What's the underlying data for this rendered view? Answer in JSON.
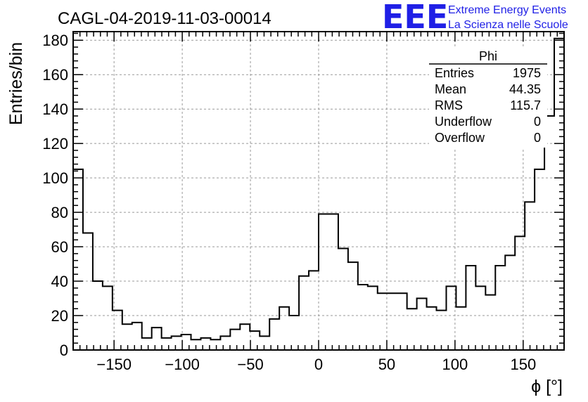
{
  "chart_data": {
    "type": "bar",
    "title": "CAGL-04-2019-11-03-00014",
    "xlabel": "ϕ [°]",
    "ylabel": "Entries/bin",
    "xlim": [
      -180,
      180
    ],
    "ylim": [
      0,
      185
    ],
    "grid": true,
    "x_ticks": [
      -150,
      -100,
      -50,
      0,
      50,
      100,
      150
    ],
    "y_ticks": [
      0,
      20,
      40,
      60,
      80,
      100,
      120,
      140,
      160,
      180
    ],
    "bin_width": 7.2,
    "bins_x_low": [
      -180,
      -172.8,
      -165.6,
      -158.4,
      -151.2,
      -144,
      -136.8,
      -129.6,
      -122.4,
      -115.2,
      -108,
      -100.8,
      -93.6,
      -86.4,
      -79.2,
      -72,
      -64.8,
      -57.6,
      -50.4,
      -43.2,
      -36,
      -28.8,
      -21.6,
      -14.4,
      -7.2,
      0,
      7.2,
      14.4,
      21.6,
      28.8,
      36,
      43.2,
      50.4,
      57.6,
      64.8,
      72,
      79.2,
      86.4,
      93.6,
      100.8,
      108,
      115.2,
      122.4,
      129.6,
      136.8,
      144,
      151.2,
      158.4,
      165.6,
      172.8
    ],
    "values": [
      105,
      68,
      40,
      37,
      23,
      15,
      16,
      7,
      13,
      7,
      8,
      9,
      6,
      7,
      6,
      8,
      12,
      15,
      11,
      8,
      18,
      25,
      20,
      43,
      46,
      79,
      79,
      59,
      51,
      38,
      37,
      33,
      33,
      33,
      24,
      30,
      25,
      23,
      37,
      25,
      49,
      37,
      32,
      49,
      55,
      66,
      86,
      105,
      136,
      181
    ]
  },
  "stats_box": {
    "name": "Phi",
    "rows": [
      {
        "label": "Entries",
        "value": "1975"
      },
      {
        "label": "Mean",
        "value": "44.35"
      },
      {
        "label": "RMS",
        "value": "115.7"
      },
      {
        "label": "Underflow",
        "value": "0"
      },
      {
        "label": "Overflow",
        "value": "0"
      }
    ]
  },
  "logo": {
    "mark": "EEE",
    "line1": "Extreme Energy Events",
    "line2": "La Scienza nelle Scuole",
    "color": "#1f1fe6"
  }
}
